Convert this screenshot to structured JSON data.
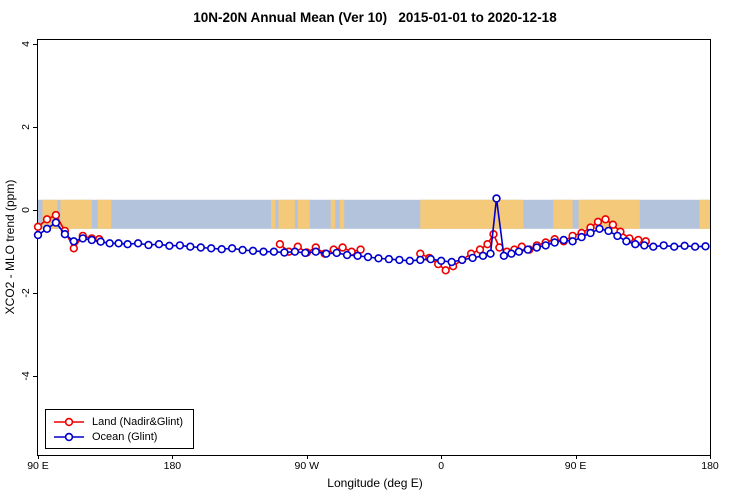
{
  "chart_data": {
    "type": "line",
    "title": "10N-20N Annual Mean (Ver 10)   2015-01-01 to 2020-12-18",
    "xlabel": "Longitude (deg E)",
    "ylabel": "XCO2 - MLO trend (ppm)",
    "xlim": [
      90,
      540
    ],
    "ylim": [
      -5.9,
      4.1
    ],
    "grid": false,
    "legend_position": "bottom-left-inside",
    "x_ticks": [
      {
        "value": 90,
        "label": "90 E"
      },
      {
        "value": 180,
        "label": "180"
      },
      {
        "value": 270,
        "label": "90 W"
      },
      {
        "value": 360,
        "label": "0"
      },
      {
        "value": 450,
        "label": "90 E"
      },
      {
        "value": 540,
        "label": "180"
      }
    ],
    "y_ticks": [
      {
        "value": -4,
        "label": "-4"
      },
      {
        "value": -2,
        "label": "-2"
      },
      {
        "value": 0,
        "label": "0"
      },
      {
        "value": 2,
        "label": "2"
      },
      {
        "value": 4,
        "label": "4"
      }
    ],
    "band": {
      "description": "map strip of 10N-20N latitudes: ocean band with land patches",
      "from": -0.45,
      "to": 0.25,
      "ocean_color": "#b3c3dc",
      "land_color": "#f4c979",
      "land_segments": [
        {
          "from": 93,
          "to": 103
        },
        {
          "from": 105,
          "to": 126
        },
        {
          "from": 130,
          "to": 139
        },
        {
          "from": 246,
          "to": 249
        },
        {
          "from": 251,
          "to": 262
        },
        {
          "from": 264,
          "to": 272
        },
        {
          "from": 286,
          "to": 289
        },
        {
          "from": 292,
          "to": 295
        },
        {
          "from": 346,
          "to": 415
        },
        {
          "from": 435,
          "to": 448
        },
        {
          "from": 452,
          "to": 493
        },
        {
          "from": 533,
          "to": 540
        }
      ]
    },
    "series": [
      {
        "name": "Land (Nadir&Glint)",
        "color": "#ee0000",
        "marker": "open-circle",
        "segments": [
          {
            "x": [
              90,
              96,
              102,
              108,
              114,
              120,
              126,
              131
            ],
            "y": [
              -0.4,
              -0.22,
              -0.12,
              -0.5,
              -0.92,
              -0.62,
              -0.68,
              -0.7
            ]
          },
          {
            "x": [
              252,
              258,
              264,
              270,
              276,
              282,
              288,
              294,
              300,
              306
            ],
            "y": [
              -0.82,
              -1.0,
              -0.88,
              -1.02,
              -0.9,
              -1.05,
              -0.95,
              -0.9,
              -1.0,
              -0.95
            ]
          },
          {
            "x": [
              346,
              352,
              358,
              363,
              368,
              374,
              380,
              386,
              391,
              395,
              399,
              404,
              409,
              414,
              419,
              424,
              430,
              436,
              442,
              448,
              454,
              460,
              465,
              470,
              475,
              480,
              486,
              492,
              497
            ],
            "y": [
              -1.05,
              -1.15,
              -1.3,
              -1.45,
              -1.35,
              -1.2,
              -1.05,
              -0.95,
              -0.82,
              -0.58,
              -0.9,
              -1.0,
              -0.95,
              -0.88,
              -0.95,
              -0.85,
              -0.78,
              -0.7,
              -0.75,
              -0.62,
              -0.55,
              -0.42,
              -0.28,
              -0.22,
              -0.35,
              -0.52,
              -0.68,
              -0.72,
              -0.75
            ]
          }
        ]
      },
      {
        "name": "Ocean (Glint)",
        "color": "#0000cc",
        "marker": "open-circle",
        "segments": [
          {
            "x": [
              90,
              96,
              102,
              108,
              114,
              120,
              126,
              132,
              138,
              144,
              150,
              157,
              164,
              171,
              178,
              185,
              192,
              199,
              206,
              213,
              220,
              227,
              234,
              241,
              248,
              255,
              262,
              269,
              276,
              283,
              290,
              297,
              304,
              311,
              318,
              325,
              332,
              339,
              346,
              353,
              360,
              367,
              374,
              381,
              388,
              393,
              397,
              402,
              407,
              412,
              418,
              424,
              430,
              436,
              442,
              448,
              454,
              460,
              466,
              472,
              478,
              484,
              490,
              496,
              502,
              509,
              516,
              523,
              530,
              537
            ],
            "y": [
              -0.6,
              -0.45,
              -0.3,
              -0.58,
              -0.75,
              -0.68,
              -0.72,
              -0.76,
              -0.8,
              -0.8,
              -0.82,
              -0.8,
              -0.84,
              -0.82,
              -0.86,
              -0.85,
              -0.88,
              -0.9,
              -0.92,
              -0.94,
              -0.92,
              -0.96,
              -0.98,
              -1.0,
              -1.0,
              -1.02,
              -1.0,
              -1.03,
              -1.0,
              -1.05,
              -1.03,
              -1.08,
              -1.1,
              -1.13,
              -1.16,
              -1.18,
              -1.2,
              -1.22,
              -1.2,
              -1.18,
              -1.22,
              -1.25,
              -1.2,
              -1.15,
              -1.1,
              -1.05,
              0.28,
              -1.1,
              -1.05,
              -1.0,
              -0.95,
              -0.9,
              -0.85,
              -0.78,
              -0.72,
              -0.75,
              -0.65,
              -0.55,
              -0.45,
              -0.5,
              -0.62,
              -0.75,
              -0.82,
              -0.85,
              -0.88,
              -0.85,
              -0.88,
              -0.86,
              -0.88,
              -0.87
            ]
          }
        ]
      }
    ]
  }
}
